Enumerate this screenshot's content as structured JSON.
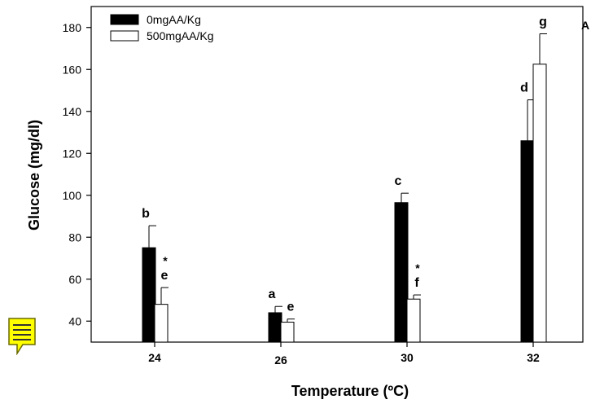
{
  "chart_data": {
    "type": "bar",
    "panel_label": "A",
    "xlabel": "Temperature (ºC)",
    "ylabel": "Glucose (mg/dl)",
    "ylim": [
      30,
      190
    ],
    "yticks": [
      40,
      60,
      80,
      100,
      120,
      140,
      160,
      180
    ],
    "categories": [
      "24",
      "26",
      "30",
      "32"
    ],
    "series": [
      {
        "name": "0mgAA/Kg",
        "color": "#000000",
        "values": [
          75,
          44,
          96.5,
          126
        ],
        "errors": [
          10.5,
          3,
          4.5,
          19.5
        ],
        "labels": [
          "b",
          "a",
          "c",
          "d"
        ],
        "stars": [
          "",
          "",
          "",
          ""
        ]
      },
      {
        "name": "500mgAA/Kg",
        "color": "#ffffff",
        "values": [
          48,
          39.5,
          50.5,
          162.5
        ],
        "errors": [
          8,
          1.5,
          2,
          14.5
        ],
        "labels": [
          "e",
          "e",
          "f",
          "g"
        ],
        "stars": [
          "*",
          "",
          "*",
          ""
        ]
      }
    ],
    "legend_position": "top-left",
    "grid": false
  },
  "overlay": {
    "icon": "sticky-note-icon",
    "color": "#ffff00"
  }
}
